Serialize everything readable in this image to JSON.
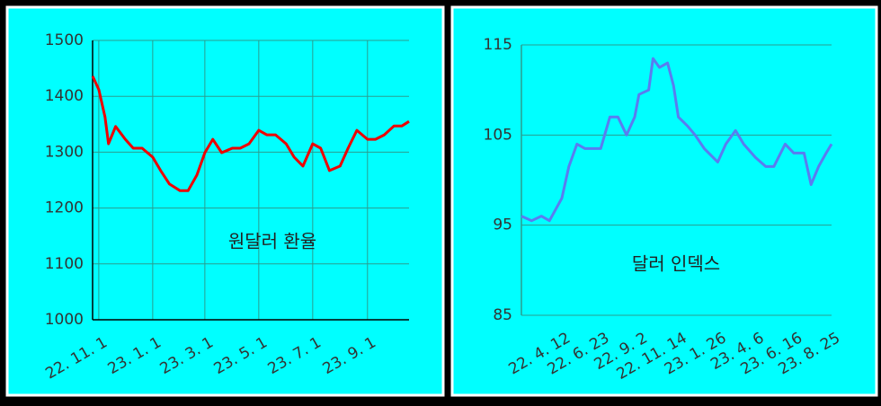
{
  "chart_data": [
    {
      "type": "line",
      "annotation": "원달러 환율",
      "color": "#ee0000",
      "xgrid": true,
      "ygrid": true,
      "xlim": [
        "2022-10-25",
        "2023-10-18"
      ],
      "xticks": [
        {
          "value": "2022-11-01",
          "label": "22. 11. 1"
        },
        {
          "value": "2023-01-01",
          "label": "23. 1. 1"
        },
        {
          "value": "2023-03-01",
          "label": "23. 3. 1"
        },
        {
          "value": "2023-05-01",
          "label": "23. 5. 1"
        },
        {
          "value": "2023-07-01",
          "label": "23. 7. 1"
        },
        {
          "value": "2023-09-01",
          "label": "23. 9. 1"
        }
      ],
      "ylim": [
        1000,
        1500
      ],
      "yticks": [
        1000,
        1100,
        1200,
        1300,
        1400,
        1500
      ],
      "x": [
        "2022-10-25",
        "2022-11-01",
        "2022-11-08",
        "2022-11-12",
        "2022-11-20",
        "2022-12-01",
        "2022-12-10",
        "2022-12-20",
        "2023-01-01",
        "2023-01-10",
        "2023-01-20",
        "2023-02-01",
        "2023-02-10",
        "2023-02-20",
        "2023-03-01",
        "2023-03-10",
        "2023-03-20",
        "2023-04-01",
        "2023-04-10",
        "2023-04-20",
        "2023-05-01",
        "2023-05-10",
        "2023-05-20",
        "2023-06-01",
        "2023-06-10",
        "2023-06-20",
        "2023-07-01",
        "2023-07-10",
        "2023-07-20",
        "2023-08-01",
        "2023-08-10",
        "2023-08-20",
        "2023-09-01",
        "2023-09-10",
        "2023-09-20",
        "2023-10-01",
        "2023-10-10",
        "2023-10-18"
      ],
      "values": [
        1436,
        1412,
        1363,
        1315,
        1346,
        1323,
        1307,
        1307,
        1291,
        1267,
        1243,
        1231,
        1231,
        1259,
        1299,
        1323,
        1299,
        1307,
        1307,
        1315,
        1339,
        1331,
        1331,
        1315,
        1291,
        1275,
        1315,
        1307,
        1267,
        1275,
        1307,
        1339,
        1323,
        1323,
        1331,
        1347,
        1347,
        1355
      ]
    },
    {
      "type": "line",
      "annotation": "달러 인덱스",
      "color": "#5a7cf0",
      "xgrid": false,
      "ygrid": true,
      "xlim": [
        "2022-01-27",
        "2023-08-25"
      ],
      "xticks": [
        {
          "value": "2022-04-12",
          "label": "22. 4. 12"
        },
        {
          "value": "2022-06-23",
          "label": "22. 6. 23"
        },
        {
          "value": "2022-09-02",
          "label": "22. 9. 2"
        },
        {
          "value": "2022-11-14",
          "label": "22. 11. 14"
        },
        {
          "value": "2023-01-26",
          "label": "23. 1. 26"
        },
        {
          "value": "2023-04-06",
          "label": "23. 4. 6"
        },
        {
          "value": "2023-06-16",
          "label": "23. 6. 16"
        },
        {
          "value": "2023-08-25",
          "label": "23. 8. 25"
        }
      ],
      "ylim": [
        85,
        115
      ],
      "yticks": [
        85,
        95,
        105,
        115
      ],
      "x": [
        "2022-01-27",
        "2022-02-15",
        "2022-03-05",
        "2022-03-20",
        "2022-04-12",
        "2022-04-25",
        "2022-05-10",
        "2022-05-25",
        "2022-06-10",
        "2022-06-23",
        "2022-07-10",
        "2022-07-25",
        "2022-08-10",
        "2022-08-25",
        "2022-09-02",
        "2022-09-20",
        "2022-09-28",
        "2022-10-10",
        "2022-10-25",
        "2022-11-05",
        "2022-11-14",
        "2022-12-01",
        "2022-12-15",
        "2023-01-01",
        "2023-01-26",
        "2023-02-10",
        "2023-02-28",
        "2023-03-15",
        "2023-04-06",
        "2023-04-25",
        "2023-05-10",
        "2023-05-31",
        "2023-06-16",
        "2023-07-05",
        "2023-07-18",
        "2023-08-01",
        "2023-08-15",
        "2023-08-25"
      ],
      "values": [
        96,
        95.5,
        96,
        95.5,
        98,
        101.5,
        104,
        103.5,
        103.5,
        103.5,
        107,
        107,
        105,
        107,
        109.5,
        110,
        113.5,
        112.5,
        113,
        110.5,
        107,
        106,
        105,
        103.5,
        102,
        104,
        105.5,
        104,
        102.5,
        101.5,
        101.5,
        104,
        103,
        103,
        99.5,
        101.5,
        103,
        104
      ]
    }
  ]
}
